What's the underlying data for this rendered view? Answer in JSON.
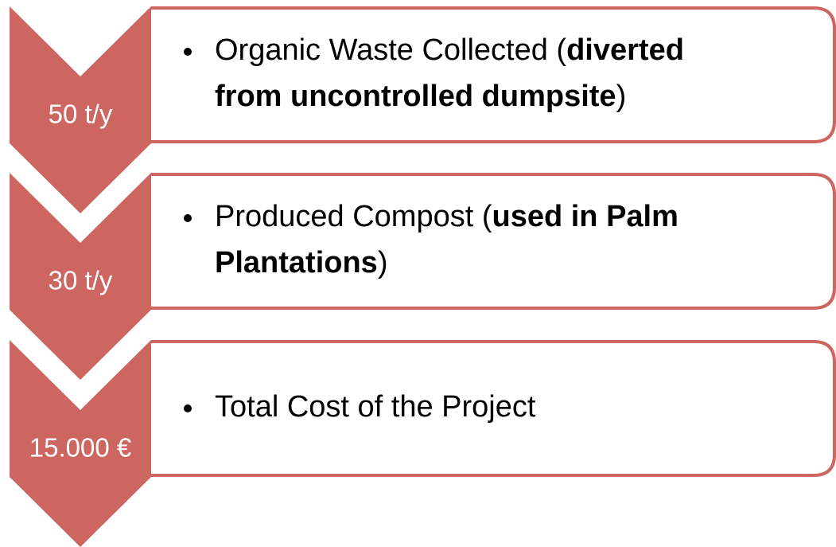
{
  "items": [
    {
      "label": "50 t/y",
      "lines": [
        [
          {
            "text": "Organic Waste Collected ("
          },
          {
            "text": "diverted",
            "bold": true
          }
        ],
        [
          {
            "text": "from uncontrolled dumpsite",
            "bold": true
          },
          {
            "text": ")"
          }
        ]
      ]
    },
    {
      "label": "30 t/y",
      "lines": [
        [
          {
            "text": "Produced Compost ("
          },
          {
            "text": "used in Palm",
            "bold": true
          }
        ],
        [
          {
            "text": "Plantations",
            "bold": true
          },
          {
            "text": ")"
          }
        ]
      ]
    },
    {
      "label": "15.000 €",
      "lines": [
        [
          {
            "text": "Total Cost of the Project"
          }
        ]
      ]
    }
  ]
}
